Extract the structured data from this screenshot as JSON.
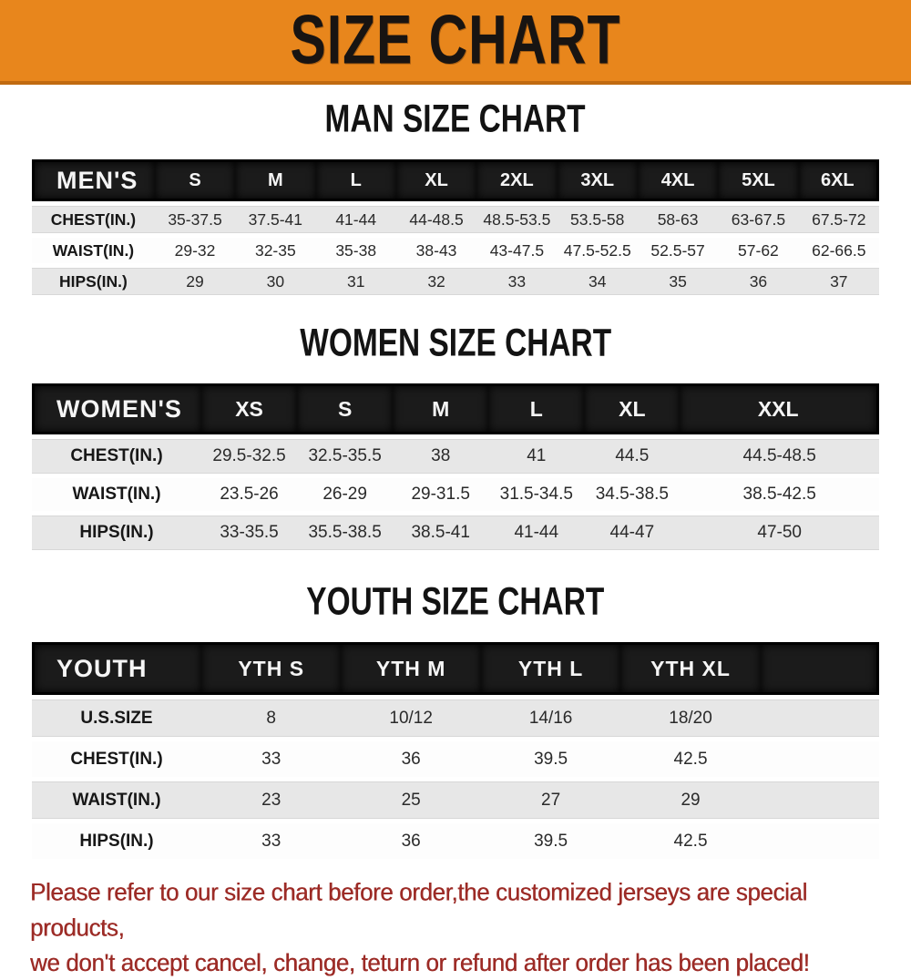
{
  "banner": {
    "title": "SIZE CHART"
  },
  "colors": {
    "banner_bg": "#E8861C",
    "banner_edge": "#C06A10",
    "table_header_bg": "#1B1B1B",
    "row_stripe": "#E7E7E7",
    "note_red": "#9C2B26"
  },
  "tables": {
    "men": {
      "heading": "MAN SIZE CHART",
      "header": [
        "MEN'S",
        "S",
        "M",
        "L",
        "XL",
        "2XL",
        "3XL",
        "4XL",
        "5XL",
        "6XL"
      ],
      "rows": [
        [
          "CHEST(IN.)",
          "35-37.5",
          "37.5-41",
          "41-44",
          "44-48.5",
          "48.5-53.5",
          "53.5-58",
          "58-63",
          "63-67.5",
          "67.5-72"
        ],
        [
          "WAIST(IN.)",
          "29-32",
          "32-35",
          "35-38",
          "38-43",
          "43-47.5",
          "47.5-52.5",
          "52.5-57",
          "57-62",
          "62-66.5"
        ],
        [
          "HIPS(IN.)",
          "29",
          "30",
          "31",
          "32",
          "33",
          "34",
          "35",
          "36",
          "37"
        ]
      ]
    },
    "women": {
      "heading": "WOMEN SIZE CHART",
      "header": [
        "WOMEN'S",
        "XS",
        "S",
        "M",
        "L",
        "XL",
        "XXL"
      ],
      "rows": [
        [
          "CHEST(IN.)",
          "29.5-32.5",
          "32.5-35.5",
          "38",
          "41",
          "44.5",
          "44.5-48.5"
        ],
        [
          "WAIST(IN.)",
          "23.5-26",
          "26-29",
          "29-31.5",
          "31.5-34.5",
          "34.5-38.5",
          "38.5-42.5"
        ],
        [
          "HIPS(IN.)",
          "33-35.5",
          "35.5-38.5",
          "38.5-41",
          "41-44",
          "44-47",
          "47-50"
        ]
      ]
    },
    "youth": {
      "heading": "YOUTH SIZE CHART",
      "header": [
        "YOUTH",
        "YTH S",
        "YTH M",
        "YTH L",
        "YTH XL"
      ],
      "rows": [
        [
          "U.S.SIZE",
          "8",
          "10/12",
          "14/16",
          "18/20"
        ],
        [
          "CHEST(IN.)",
          "33",
          "36",
          "39.5",
          "42.5"
        ],
        [
          "WAIST(IN.)",
          "23",
          "25",
          "27",
          "29"
        ],
        [
          "HIPS(IN.)",
          "33",
          "36",
          "39.5",
          "42.5"
        ]
      ]
    }
  },
  "note": {
    "line1": "Please refer to our size chart before order,the customized jerseys are special products,",
    "line2": "we don't accept cancel, change, teturn or refund after order has been placed!"
  }
}
